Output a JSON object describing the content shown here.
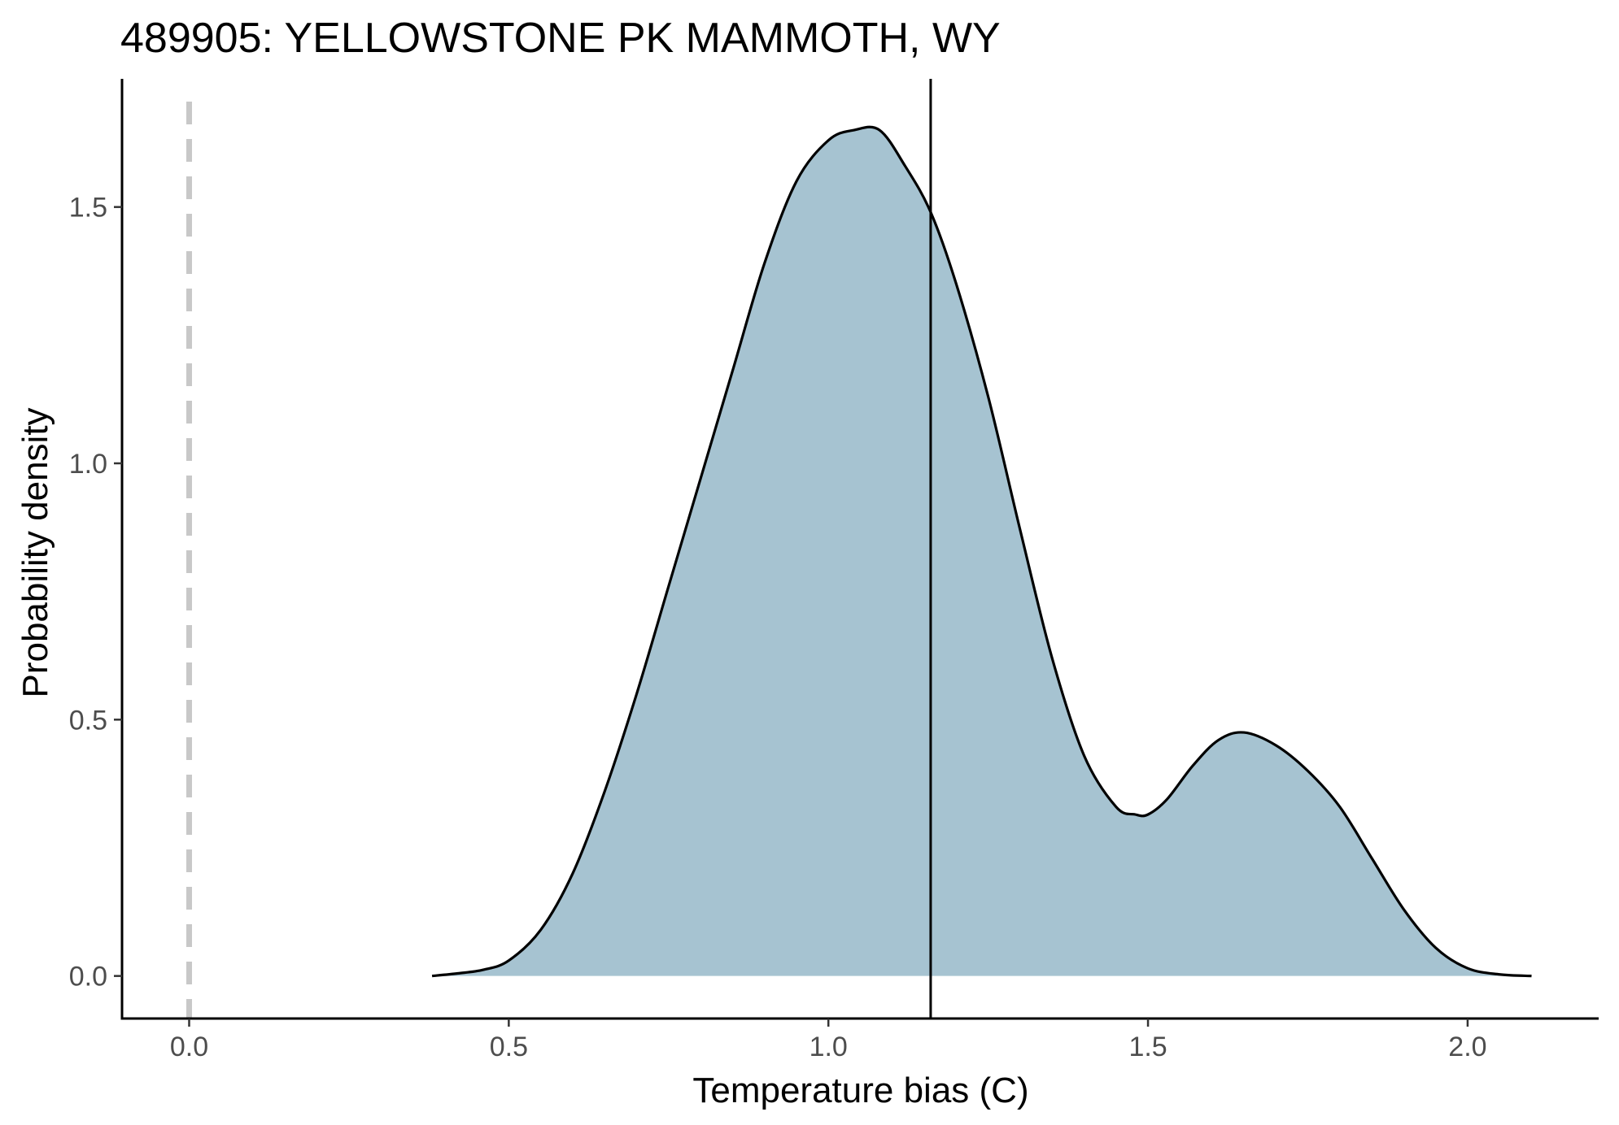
{
  "chart_data": {
    "type": "area",
    "title": "489905: YELLOWSTONE PK MAMMOTH, WY",
    "xlabel": "Temperature bias (C)",
    "ylabel": "Probability density",
    "xlim": [
      -0.105,
      2.205
    ],
    "ylim": [
      -0.083,
      1.75
    ],
    "x_ticks": [
      0.0,
      0.5,
      1.0,
      1.5,
      2.0
    ],
    "x_tick_labels": [
      "0.0",
      "0.5",
      "1.0",
      "1.5",
      "2.0"
    ],
    "y_ticks": [
      0.0,
      0.5,
      1.0,
      1.5
    ],
    "y_tick_labels": [
      "0.0",
      "0.5",
      "1.0",
      "1.5"
    ],
    "grid": false,
    "series": [
      {
        "x": [
          0.38,
          0.42,
          0.46,
          0.5,
          0.55,
          0.6,
          0.65,
          0.7,
          0.75,
          0.8,
          0.85,
          0.9,
          0.95,
          1.0,
          1.04,
          1.08,
          1.12,
          1.16,
          1.2,
          1.25,
          1.3,
          1.35,
          1.4,
          1.45,
          1.48,
          1.5,
          1.53,
          1.57,
          1.61,
          1.65,
          1.7,
          1.75,
          1.8,
          1.85,
          1.9,
          1.95,
          2.0,
          2.05,
          2.1
        ],
        "y": [
          0.0,
          0.005,
          0.012,
          0.03,
          0.09,
          0.2,
          0.36,
          0.55,
          0.76,
          0.97,
          1.18,
          1.39,
          1.55,
          1.63,
          1.65,
          1.65,
          1.58,
          1.49,
          1.35,
          1.13,
          0.87,
          0.62,
          0.43,
          0.33,
          0.315,
          0.315,
          0.345,
          0.41,
          0.46,
          0.475,
          0.45,
          0.4,
          0.33,
          0.23,
          0.13,
          0.055,
          0.015,
          0.003,
          0.0
        ],
        "fill": "#a6c3d1",
        "line_color": "#000000"
      }
    ],
    "reference_lines": [
      {
        "x": 0.0,
        "style": "dashed",
        "color": "#c8c8c8"
      },
      {
        "x": 1.16,
        "style": "solid",
        "color": "#000000"
      }
    ]
  }
}
